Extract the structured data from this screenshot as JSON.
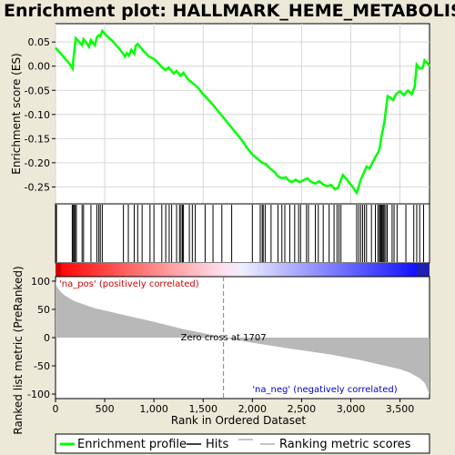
{
  "chart_data": {
    "type": "line",
    "title": "Enrichment plot: HALLMARK_HEME_METABOLISM",
    "total_genes": 3800,
    "es_panel": {
      "ylabel": "Enrichment score (ES)",
      "ylim": [
        -0.285,
        0.088
      ],
      "yticks": [
        0.05,
        0.0,
        -0.05,
        -0.1,
        -0.15,
        -0.2,
        -0.25
      ],
      "ytick_labels": [
        "0.05",
        "0.00",
        "-0.05",
        "-0.10",
        "-0.15",
        "-0.20",
        "-0.25"
      ],
      "grid": true,
      "color": "#00ff00",
      "points": [
        [
          0,
          0.038
        ],
        [
          50,
          0.027
        ],
        [
          100,
          0.015
        ],
        [
          150,
          0.003
        ],
        [
          175,
          -0.005
        ],
        [
          180,
          0.012
        ],
        [
          192,
          0.034
        ],
        [
          205,
          0.058
        ],
        [
          240,
          0.05
        ],
        [
          270,
          0.044
        ],
        [
          285,
          0.056
        ],
        [
          310,
          0.05
        ],
        [
          340,
          0.04
        ],
        [
          360,
          0.054
        ],
        [
          400,
          0.043
        ],
        [
          420,
          0.06
        ],
        [
          440,
          0.064
        ],
        [
          455,
          0.062
        ],
        [
          475,
          0.073
        ],
        [
          520,
          0.063
        ],
        [
          580,
          0.052
        ],
        [
          640,
          0.038
        ],
        [
          680,
          0.028
        ],
        [
          705,
          0.02
        ],
        [
          725,
          0.027
        ],
        [
          745,
          0.022
        ],
        [
          770,
          0.034
        ],
        [
          800,
          0.026
        ],
        [
          815,
          0.042
        ],
        [
          835,
          0.046
        ],
        [
          860,
          0.04
        ],
        [
          900,
          0.03
        ],
        [
          950,
          0.02
        ],
        [
          1000,
          0.015
        ],
        [
          1050,
          0.005
        ],
        [
          1080,
          -0.002
        ],
        [
          1120,
          -0.008
        ],
        [
          1150,
          -0.003
        ],
        [
          1200,
          -0.015
        ],
        [
          1230,
          -0.01
        ],
        [
          1270,
          -0.02
        ],
        [
          1300,
          -0.014
        ],
        [
          1350,
          -0.028
        ],
        [
          1400,
          -0.036
        ],
        [
          1450,
          -0.045
        ],
        [
          1500,
          -0.058
        ],
        [
          1600,
          -0.08
        ],
        [
          1700,
          -0.105
        ],
        [
          1800,
          -0.13
        ],
        [
          1900,
          -0.155
        ],
        [
          1950,
          -0.17
        ],
        [
          2000,
          -0.183
        ],
        [
          2060,
          -0.193
        ],
        [
          2100,
          -0.2
        ],
        [
          2140,
          -0.203
        ],
        [
          2180,
          -0.212
        ],
        [
          2230,
          -0.22
        ],
        [
          2260,
          -0.228
        ],
        [
          2300,
          -0.232
        ],
        [
          2340,
          -0.23
        ],
        [
          2370,
          -0.237
        ],
        [
          2400,
          -0.24
        ],
        [
          2440,
          -0.235
        ],
        [
          2480,
          -0.24
        ],
        [
          2520,
          -0.236
        ],
        [
          2560,
          -0.232
        ],
        [
          2600,
          -0.24
        ],
        [
          2640,
          -0.243
        ],
        [
          2680,
          -0.238
        ],
        [
          2720,
          -0.245
        ],
        [
          2760,
          -0.248
        ],
        [
          2800,
          -0.246
        ],
        [
          2840,
          -0.255
        ],
        [
          2870,
          -0.252
        ],
        [
          2900,
          -0.235
        ],
        [
          2920,
          -0.225
        ],
        [
          2950,
          -0.232
        ],
        [
          2980,
          -0.24
        ],
        [
          3020,
          -0.25
        ],
        [
          3060,
          -0.262
        ],
        [
          3080,
          -0.25
        ],
        [
          3100,
          -0.235
        ],
        [
          3130,
          -0.222
        ],
        [
          3160,
          -0.208
        ],
        [
          3190,
          -0.212
        ],
        [
          3220,
          -0.2
        ],
        [
          3250,
          -0.188
        ],
        [
          3280,
          -0.178
        ],
        [
          3295,
          -0.168
        ],
        [
          3310,
          -0.148
        ],
        [
          3325,
          -0.133
        ],
        [
          3340,
          -0.118
        ],
        [
          3350,
          -0.102
        ],
        [
          3360,
          -0.085
        ],
        [
          3375,
          -0.062
        ],
        [
          3400,
          -0.065
        ],
        [
          3430,
          -0.07
        ],
        [
          3460,
          -0.058
        ],
        [
          3500,
          -0.052
        ],
        [
          3540,
          -0.06
        ],
        [
          3580,
          -0.05
        ],
        [
          3620,
          -0.058
        ],
        [
          3650,
          -0.042
        ],
        [
          3670,
          0.003
        ],
        [
          3700,
          -0.005
        ],
        [
          3730,
          -0.004
        ],
        [
          3750,
          0.012
        ],
        [
          3780,
          0.006
        ],
        [
          3800,
          0.0
        ]
      ]
    },
    "hits": [
      10,
      170,
      178,
      188,
      200,
      212,
      270,
      285,
      360,
      420,
      440,
      455,
      475,
      690,
      740,
      800,
      835,
      880,
      960,
      1000,
      1080,
      1120,
      1155,
      1180,
      1230,
      1260,
      1275,
      1290,
      1300,
      1360,
      1390,
      1420,
      1520,
      1600,
      1690,
      1790,
      2000,
      2080,
      2100,
      2110,
      2130,
      2190,
      2260,
      2300,
      2330,
      2380,
      2430,
      2470,
      2490,
      2550,
      2570,
      2640,
      2670,
      2720,
      2780,
      2830,
      2860,
      2880,
      2900,
      3060,
      3080,
      3100,
      3120,
      3140,
      3160,
      3210,
      3250,
      3275,
      3290,
      3300,
      3310,
      3320,
      3330,
      3340,
      3355,
      3370,
      3420,
      3440,
      3470,
      3560,
      3640,
      3670,
      3700,
      3740
    ],
    "ranked_list": {
      "ylabel": "Ranked list metric (PreRanked)",
      "ylim": [
        -108,
        108
      ],
      "yticks": [
        100,
        50,
        0,
        -50,
        -100
      ],
      "ytick_labels": [
        "100",
        "50",
        "0",
        "-50",
        "-100"
      ],
      "curve": [
        [
          0,
          100
        ],
        [
          10,
          92
        ],
        [
          30,
          86
        ],
        [
          60,
          80
        ],
        [
          100,
          74
        ],
        [
          200,
          64
        ],
        [
          400,
          52
        ],
        [
          700,
          40
        ],
        [
          1000,
          28
        ],
        [
          1300,
          15
        ],
        [
          1500,
          8
        ],
        [
          1707,
          0
        ],
        [
          2000,
          -9
        ],
        [
          2400,
          -20
        ],
        [
          2800,
          -30
        ],
        [
          3100,
          -40
        ],
        [
          3300,
          -48
        ],
        [
          3500,
          -56
        ],
        [
          3600,
          -62
        ],
        [
          3700,
          -72
        ],
        [
          3750,
          -80
        ],
        [
          3775,
          -90
        ],
        [
          3790,
          -97
        ],
        [
          3800,
          -100
        ]
      ],
      "zero_cross": 1707,
      "zero_cross_label": "Zero cross at 1707",
      "pos_label": "'na_pos' (positively correlated)",
      "neg_label": "'na_neg' (negatively correlated)"
    },
    "xaxis": {
      "xlabel": "Rank in Ordered Dataset",
      "xlim": [
        0,
        3800
      ],
      "xticks": [
        0,
        500,
        1000,
        1500,
        2000,
        2500,
        3000,
        3500
      ],
      "xtick_labels": [
        "0",
        "500",
        "1,000",
        "1,500",
        "2,000",
        "2,500",
        "3,000",
        "3,500"
      ]
    },
    "legend": {
      "placement": "bottom",
      "items": [
        {
          "label": "Enrichment profile",
          "color": "#00ff00"
        },
        {
          "label": "Hits",
          "color": "#000000"
        },
        {
          "label": "Ranking metric scores",
          "color": "#c0c0c0"
        }
      ]
    }
  }
}
